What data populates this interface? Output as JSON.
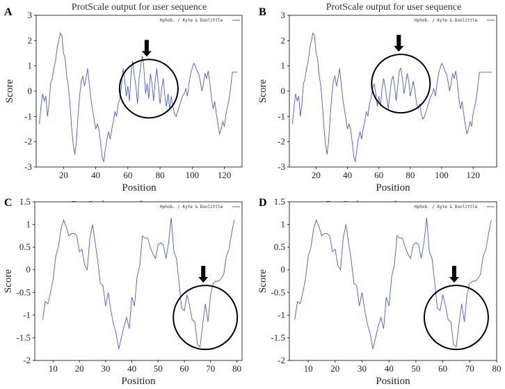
{
  "colors": {
    "series": "#4a5ccc",
    "frame": "#000000",
    "annotation": "#000000"
  },
  "chart_data": [
    {
      "panel": "A",
      "type": "line",
      "title": "ProtScale output for user sequence",
      "xlabel": "Position",
      "ylabel": "Score",
      "legend": "Hphob. / Kyte & Doolittle",
      "legend_position": "top-right",
      "xlim": [
        3,
        131
      ],
      "ylim": [
        -3,
        3
      ],
      "xticks": [
        20,
        40,
        60,
        80,
        100,
        120
      ],
      "yticks": [
        -3,
        -2,
        -1,
        0,
        1,
        2,
        3
      ],
      "annotation": {
        "type": "circle-and-arrow",
        "center": [
          73,
          0.1
        ]
      },
      "series": [
        {
          "x": [
            5,
            6,
            7,
            8,
            9,
            10,
            11,
            12,
            13,
            14,
            15,
            16,
            17,
            18,
            19,
            20,
            21,
            22,
            23,
            24,
            25,
            26,
            27,
            28,
            29,
            30,
            31,
            32,
            33,
            34,
            35,
            36,
            37,
            38,
            39,
            40,
            41,
            42,
            43,
            44,
            45,
            46,
            47,
            48,
            49,
            50,
            51,
            52,
            53,
            54,
            55,
            56,
            57,
            58,
            59,
            60,
            61,
            62,
            63,
            64,
            65,
            66,
            67,
            68,
            69,
            70,
            71,
            72,
            73,
            74,
            75,
            76,
            77,
            78,
            79,
            80,
            81,
            82,
            83,
            84,
            85,
            86,
            87,
            88,
            89,
            90,
            91,
            92,
            93,
            94,
            95,
            96,
            97,
            98,
            99,
            100,
            101,
            102,
            103,
            104,
            105,
            106,
            107,
            108,
            109,
            110,
            111,
            112,
            113,
            114,
            115,
            116,
            117,
            118,
            119,
            120,
            121,
            122,
            123,
            124,
            125,
            126,
            127,
            128
          ],
          "y": [
            -1.3,
            -0.6,
            -0.1,
            -0.4,
            -0.2,
            -1,
            -0.5,
            0.3,
            0.5,
            0.9,
            1.2,
            1.7,
            2.0,
            2.3,
            2.2,
            1.5,
            1.3,
            0.6,
            0.2,
            -0.5,
            -1.4,
            -2.1,
            -2.5,
            -2.0,
            -1.0,
            -0.2,
            0.4,
            0.6,
            0.2,
            0.5,
            0.9,
            0.3,
            -0.3,
            -0.7,
            -1.1,
            -1.5,
            -1.3,
            -1.5,
            -2.0,
            -2.6,
            -2.8,
            -2.3,
            -1.9,
            -1.6,
            -1.9,
            -1.5,
            -1.2,
            -0.8,
            -1.0,
            -0.5,
            -0.3,
            0.2,
            0.9,
            0.5,
            -0.2,
            0.2,
            -0.4,
            0.7,
            1.2,
            0.6,
            0.2,
            -0.5,
            0.5,
            1.0,
            1.4,
            0.9,
            -0.1,
            0.3,
            -0.3,
            0.7,
            0.3,
            -0.4,
            0.4,
            0.9,
            0.2,
            -0.5,
            0.1,
            0.5,
            -0.2,
            -0.6,
            -0.1,
            -0.7,
            -0.2,
            -0.6,
            -0.9,
            -1.0,
            -0.8,
            -0.6,
            -0.4,
            -0.2,
            -0.1,
            0.1,
            -0.2,
            0.3,
            0.7,
            0.9,
            1.1,
            1.0,
            0.8,
            0.7,
            0.4,
            0.0,
            0.3,
            0.7,
            0.5,
            0.8,
            0.3,
            -0.3,
            -0.7,
            -0.4,
            -0.9,
            -1.3,
            -1.7,
            -1.5,
            -1.2,
            -1.4,
            -0.9,
            -0.6,
            -0.3,
            0.2,
            0.75,
            0.75,
            0.75,
            0.75
          ]
        }
      ]
    },
    {
      "panel": "B",
      "type": "line",
      "title": "ProtScale output for user sequence",
      "xlabel": "Position",
      "ylabel": "Score",
      "legend": "Hphob. / Kyte & Doolittle",
      "legend_position": "top-right",
      "xlim": [
        3,
        135
      ],
      "ylim": [
        -3,
        3
      ],
      "xticks": [
        20,
        40,
        60,
        80,
        100,
        120
      ],
      "yticks": [
        -3,
        -2,
        -1,
        0,
        1,
        2,
        3
      ],
      "annotation": {
        "type": "circle-and-arrow",
        "center": [
          74,
          0.3
        ]
      },
      "series": [
        {
          "x": [
            5,
            6,
            7,
            8,
            9,
            10,
            11,
            12,
            13,
            14,
            15,
            16,
            17,
            18,
            19,
            20,
            21,
            22,
            23,
            24,
            25,
            26,
            27,
            28,
            29,
            30,
            31,
            32,
            33,
            34,
            35,
            36,
            37,
            38,
            39,
            40,
            41,
            42,
            43,
            44,
            45,
            46,
            47,
            48,
            49,
            50,
            51,
            52,
            53,
            54,
            55,
            56,
            57,
            58,
            59,
            60,
            61,
            62,
            63,
            64,
            65,
            66,
            67,
            68,
            69,
            70,
            71,
            72,
            73,
            74,
            75,
            76,
            77,
            78,
            79,
            80,
            81,
            82,
            83,
            84,
            85,
            86,
            87,
            88,
            89,
            90,
            91,
            92,
            93,
            94,
            95,
            96,
            97,
            98,
            99,
            100,
            101,
            102,
            103,
            104,
            105,
            106,
            107,
            108,
            109,
            110,
            111,
            112,
            113,
            114,
            115,
            116,
            117,
            118,
            119,
            120,
            121,
            122,
            123,
            124,
            125,
            126,
            127,
            128,
            129,
            130,
            131,
            132
          ],
          "y": [
            -1.3,
            -0.6,
            -0.1,
            -0.4,
            -0.2,
            -1,
            -0.5,
            0.3,
            0.5,
            0.9,
            1.2,
            1.7,
            2.0,
            2.3,
            2.2,
            1.5,
            1.3,
            0.6,
            0.2,
            -0.5,
            -1.4,
            -2.1,
            -2.5,
            -2.0,
            -1.0,
            -0.2,
            0.4,
            0.6,
            0.2,
            0.5,
            0.9,
            0.3,
            -0.3,
            -0.7,
            -1.1,
            -1.5,
            -1.3,
            -1.5,
            -2.0,
            -2.6,
            -2.8,
            -2.3,
            -1.9,
            -1.6,
            -1.9,
            -1.5,
            -1.2,
            -0.8,
            -1.0,
            -0.5,
            -0.3,
            0.1,
            0.3,
            -0.1,
            -0.6,
            -0.2,
            -0.6,
            0.1,
            0.5,
            0.2,
            -0.3,
            -0.7,
            -0.1,
            0.4,
            0.6,
            0.2,
            -0.4,
            0.2,
            0.8,
            0.9,
            0.5,
            -0.1,
            0.3,
            0.7,
            0.4,
            -0.2,
            0.1,
            0.4,
            0.0,
            -0.5,
            -0.7,
            -0.5,
            -0.9,
            -1.1,
            -1.0,
            -0.8,
            -0.6,
            -0.4,
            -0.2,
            -0.1,
            0.1,
            -0.2,
            0.3,
            0.7,
            0.9,
            1.1,
            1.0,
            0.8,
            0.7,
            0.4,
            0.0,
            0.3,
            0.7,
            0.5,
            0.8,
            0.3,
            -0.3,
            -0.7,
            -0.4,
            -0.9,
            -1.3,
            -1.7,
            -1.5,
            -1.2,
            -1.4,
            -0.9,
            -0.6,
            -0.3,
            0.2,
            0.75,
            0.75,
            0.75,
            0.75,
            0.75,
            0.75,
            0.75,
            0.75,
            0.75
          ]
        }
      ]
    },
    {
      "panel": "C",
      "type": "line",
      "title": "ProtScale output for user sequence",
      "xlabel": "Position",
      "ylabel": "Score",
      "legend": "Hphob. / Kyte & Doolittle",
      "legend_position": "top-right",
      "xlim": [
        3,
        82
      ],
      "ylim": [
        -2,
        1.5
      ],
      "xticks": [
        10,
        20,
        30,
        40,
        50,
        60,
        70,
        80
      ],
      "yticks": [
        -2,
        -1.5,
        -1,
        -0.5,
        0,
        0.5,
        1,
        1.5
      ],
      "annotation": {
        "type": "circle-and-arrow",
        "center": [
          68,
          -1.05
        ]
      },
      "series": [
        {
          "x": [
            6,
            7,
            8,
            9,
            10,
            11,
            12,
            13,
            14,
            15,
            16,
            17,
            18,
            19,
            20,
            21,
            22,
            23,
            24,
            25,
            26,
            27,
            28,
            29,
            30,
            31,
            32,
            33,
            34,
            35,
            36,
            37,
            38,
            39,
            40,
            41,
            42,
            43,
            44,
            45,
            46,
            47,
            48,
            49,
            50,
            51,
            52,
            53,
            54,
            55,
            56,
            57,
            58,
            59,
            60,
            61,
            62,
            63,
            64,
            65,
            66,
            67,
            68,
            69,
            70,
            71,
            72,
            73,
            74,
            75,
            76,
            77,
            78,
            79
          ],
          "y": [
            -1.1,
            -0.7,
            -0.75,
            -0.5,
            -0.2,
            0.3,
            0.5,
            0.9,
            1.1,
            0.95,
            0.75,
            0.8,
            0.8,
            0.75,
            0.4,
            0.45,
            0.1,
            0.0,
            0.7,
            1.0,
            0.6,
            0.2,
            -0.3,
            -0.35,
            -0.8,
            -0.5,
            -0.9,
            -1.2,
            -1.4,
            -1.75,
            -1.5,
            -1.25,
            -1.05,
            -1.3,
            -0.6,
            -0.8,
            -0.15,
            0.1,
            0.75,
            0.7,
            0.7,
            0.5,
            0.35,
            0.25,
            0.55,
            0.6,
            0.55,
            0.25,
            0.6,
            1.15,
            0.4,
            0.25,
            -0.3,
            -0.85,
            -0.9,
            -0.55,
            -0.8,
            -1.1,
            -1.15,
            -1.65,
            -1.7,
            -1.2,
            -0.75,
            -1.15,
            -0.55,
            -0.3,
            -0.25,
            -0.25,
            -0.2,
            -0.1,
            0.3,
            0.45,
            0.8,
            1.1
          ]
        }
      ]
    },
    {
      "panel": "D",
      "type": "line",
      "title": "ProtScale output for user sequence",
      "xlabel": "Position",
      "ylabel": "Score",
      "legend": "Hphob. / Kyte & Doolittle",
      "legend_position": "top-right",
      "xlim": [
        3,
        80
      ],
      "ylim": [
        -2,
        1.5
      ],
      "xticks": [
        10,
        20,
        30,
        40,
        50,
        60,
        70,
        80
      ],
      "yticks": [
        -2,
        -1.5,
        -1,
        -0.5,
        0,
        0.5,
        1,
        1.5
      ],
      "annotation": {
        "type": "circle-and-arrow",
        "center": [
          65,
          -1.05
        ]
      },
      "series": [
        {
          "x": [
            5,
            6,
            7,
            8,
            9,
            10,
            11,
            12,
            13,
            14,
            15,
            16,
            17,
            18,
            19,
            20,
            21,
            22,
            23,
            24,
            25,
            26,
            27,
            28,
            29,
            30,
            31,
            32,
            33,
            34,
            35,
            36,
            37,
            38,
            39,
            40,
            41,
            42,
            43,
            44,
            45,
            46,
            47,
            48,
            49,
            50,
            51,
            52,
            53,
            54,
            55,
            56,
            57,
            58,
            59,
            60,
            61,
            62,
            63,
            64,
            65,
            66,
            67,
            68,
            69,
            70,
            71,
            72,
            73,
            74,
            75,
            76,
            77,
            78
          ],
          "y": [
            -1.1,
            -0.7,
            -0.75,
            -0.5,
            -0.2,
            0.3,
            0.5,
            0.9,
            1.1,
            0.95,
            0.75,
            0.8,
            0.8,
            0.75,
            0.4,
            0.45,
            0.1,
            0.0,
            0.7,
            1.0,
            0.6,
            0.2,
            -0.3,
            -0.35,
            -0.8,
            -0.5,
            -0.9,
            -1.2,
            -1.4,
            -1.75,
            -1.5,
            -1.25,
            -1.05,
            -1.3,
            -0.6,
            -0.8,
            -0.15,
            0.1,
            0.75,
            0.7,
            0.7,
            0.5,
            0.35,
            0.25,
            0.55,
            0.6,
            0.55,
            0.25,
            0.6,
            1.15,
            0.4,
            0.25,
            -0.3,
            -0.85,
            -0.9,
            -0.55,
            -0.8,
            -1.1,
            -1.15,
            -1.65,
            -1.7,
            -1.2,
            -0.75,
            -1.15,
            -0.55,
            -0.3,
            -0.25,
            -0.25,
            -0.2,
            -0.1,
            0.3,
            0.45,
            0.8,
            1.1
          ]
        }
      ]
    }
  ]
}
